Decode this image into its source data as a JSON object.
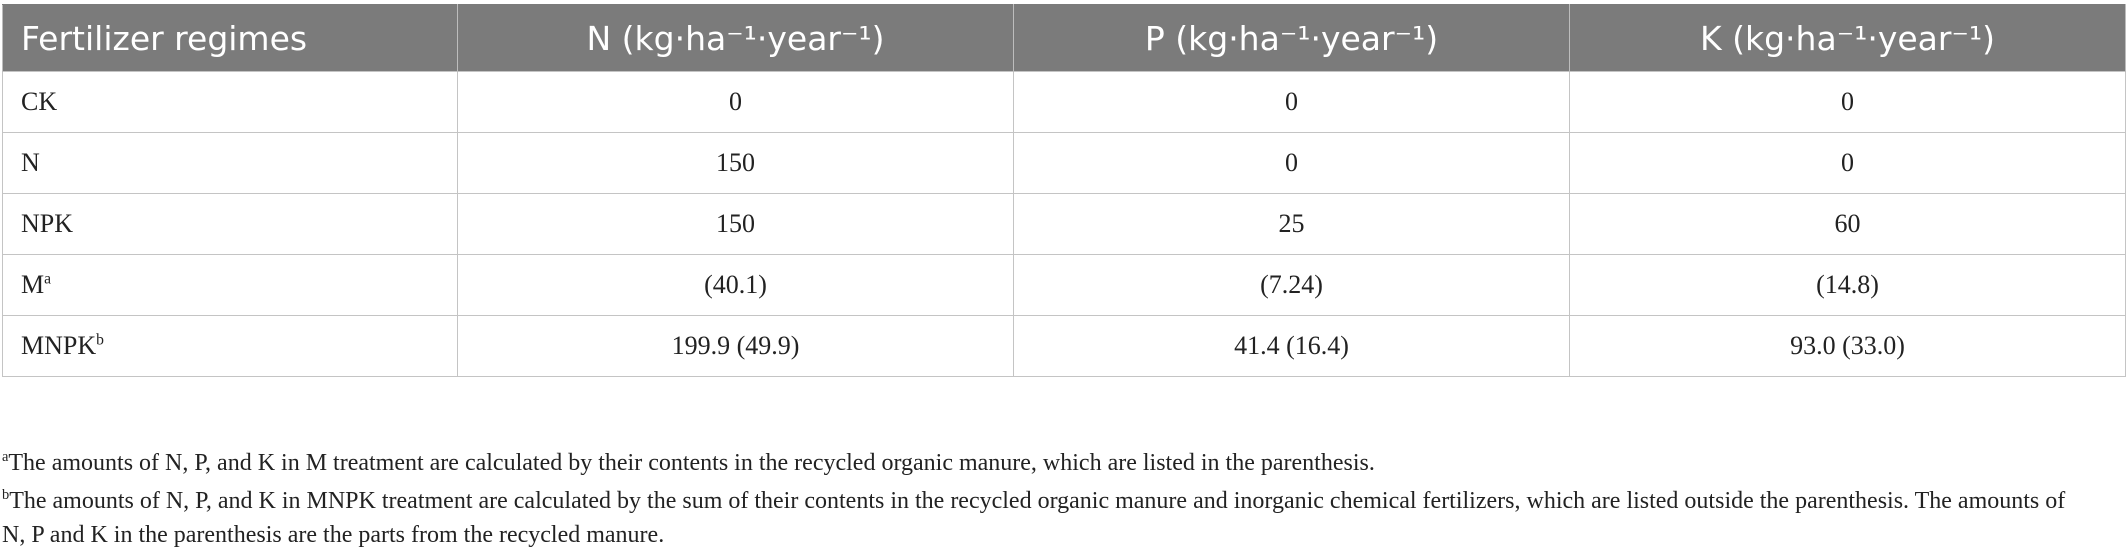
{
  "table": {
    "headers": [
      "Fertilizer regimes",
      "N (kg·ha⁻¹·year⁻¹)",
      "P (kg·ha⁻¹·year⁻¹)",
      "K (kg·ha⁻¹·year⁻¹)"
    ],
    "rows": [
      {
        "regime": "CK",
        "sup": "",
        "n": "0",
        "p": "0",
        "k": "0"
      },
      {
        "regime": "N",
        "sup": "",
        "n": "150",
        "p": "0",
        "k": "0"
      },
      {
        "regime": "NPK",
        "sup": "",
        "n": "150",
        "p": "25",
        "k": "60"
      },
      {
        "regime": "M",
        "sup": "a",
        "n": "(40.1)",
        "p": "(7.24)",
        "k": "(14.8)"
      },
      {
        "regime": "MNPK",
        "sup": "b",
        "n": "199.9 (49.9)",
        "p": "41.4 (16.4)",
        "k": "93.0 (33.0)"
      }
    ]
  },
  "footnotes": [
    {
      "mark": "a",
      "text": "The amounts of N, P, and K in M treatment are calculated by their contents in the recycled organic manure, which are listed in the parenthesis."
    },
    {
      "mark": "b",
      "text": "The amounts of N, P, and K in MNPK treatment are calculated by the sum of their contents in the recycled organic manure and inorganic chemical fertilizers, which are listed outside the parenthesis. The amounts of N, P and K in the parenthesis are the parts from the recycled manure."
    }
  ]
}
